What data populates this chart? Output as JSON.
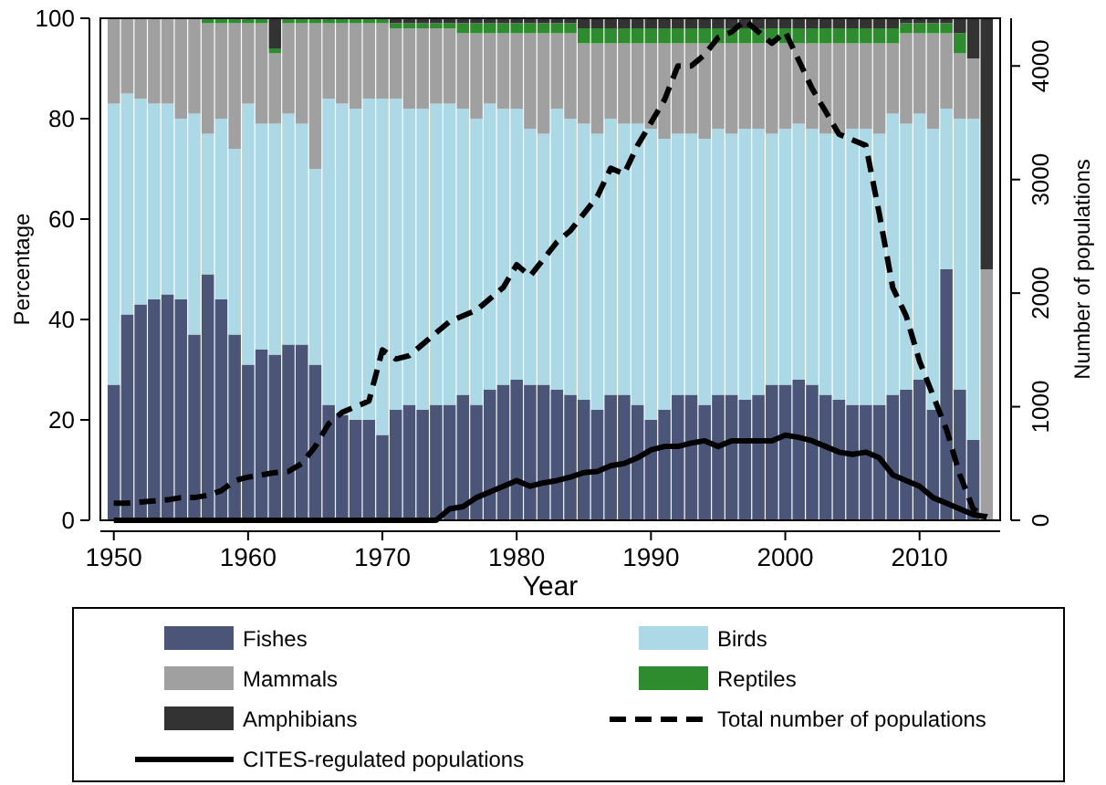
{
  "chart_data": {
    "type": "bar",
    "stacked": true,
    "xlabel": "Year",
    "ylabel": "Percentage",
    "y2label": "Number of populations",
    "x": [
      1950,
      1951,
      1952,
      1953,
      1954,
      1955,
      1956,
      1957,
      1958,
      1959,
      1960,
      1961,
      1962,
      1963,
      1964,
      1965,
      1966,
      1967,
      1968,
      1969,
      1970,
      1971,
      1972,
      1973,
      1974,
      1975,
      1976,
      1977,
      1978,
      1979,
      1980,
      1981,
      1982,
      1983,
      1984,
      1985,
      1986,
      1987,
      1988,
      1989,
      1990,
      1991,
      1992,
      1993,
      1994,
      1995,
      1996,
      1997,
      1998,
      1999,
      2000,
      2001,
      2002,
      2003,
      2004,
      2005,
      2006,
      2007,
      2008,
      2009,
      2010,
      2011,
      2012,
      2013,
      2014,
      2015
    ],
    "xlim": [
      1949,
      2016
    ],
    "xticks": [
      1950,
      1960,
      1970,
      1980,
      1990,
      2000,
      2010
    ],
    "ylim": [
      0,
      100
    ],
    "yticks": [
      0,
      20,
      40,
      60,
      80,
      100
    ],
    "y2lim": [
      0,
      4420
    ],
    "y2ticks": [
      0,
      1000,
      2000,
      3000,
      4000
    ],
    "legend": "bottom",
    "marker": "none",
    "series": [
      {
        "name": "Fishes",
        "color": "#4a5578",
        "values": [
          27,
          41,
          43,
          44,
          45,
          44,
          37,
          49,
          44,
          37,
          31,
          34,
          33,
          35,
          35,
          31,
          23,
          21,
          20,
          20,
          17,
          22,
          23,
          22,
          23,
          23,
          25,
          23,
          26,
          27,
          28,
          27,
          27,
          26,
          25,
          24,
          22,
          25,
          25,
          23,
          20,
          22,
          25,
          25,
          23,
          25,
          25,
          24,
          25,
          27,
          27,
          28,
          27,
          25,
          24,
          23,
          23,
          23,
          25,
          26,
          28,
          22,
          50,
          26,
          16,
          0
        ]
      },
      {
        "name": "Birds",
        "color": "#add8e6",
        "values": [
          56,
          44,
          41,
          39,
          38,
          36,
          44,
          28,
          36,
          37,
          52,
          45,
          46,
          46,
          44,
          39,
          61,
          62,
          62,
          64,
          67,
          62,
          59,
          60,
          60,
          60,
          57,
          57,
          57,
          55,
          54,
          51,
          50,
          56,
          55,
          55,
          55,
          55,
          54,
          56,
          58,
          54,
          52,
          52,
          53,
          53,
          52,
          54,
          53,
          50,
          51,
          51,
          51,
          52,
          53,
          55,
          55,
          54,
          56,
          53,
          53,
          56,
          32,
          54,
          64,
          0
        ]
      },
      {
        "name": "Mammals",
        "color": "#a0a0a0",
        "values": [
          17,
          15,
          16,
          17,
          17,
          20,
          19,
          22,
          19,
          25,
          16,
          20,
          14,
          18,
          20,
          29,
          15,
          16,
          17,
          15,
          15,
          14,
          16,
          16,
          15,
          15,
          15,
          17,
          14,
          15,
          15,
          19,
          20,
          15,
          17,
          16,
          18,
          15,
          16,
          16,
          17,
          19,
          18,
          18,
          19,
          17,
          18,
          17,
          17,
          18,
          17,
          16,
          17,
          18,
          18,
          17,
          17,
          18,
          14,
          18,
          16,
          19,
          15,
          13,
          12,
          50
        ]
      },
      {
        "name": "Reptiles",
        "color": "#2e8b2e",
        "values": [
          0,
          0,
          0,
          0,
          0,
          0,
          0,
          1,
          1,
          1,
          1,
          1,
          1,
          1,
          1,
          1,
          1,
          1,
          1,
          1,
          1,
          1,
          1,
          1,
          1,
          1,
          2,
          2,
          2,
          2,
          2,
          2,
          2,
          2,
          2,
          3,
          3,
          3,
          3,
          3,
          3,
          3,
          3,
          3,
          3,
          3,
          3,
          3,
          3,
          3,
          3,
          3,
          3,
          3,
          3,
          3,
          3,
          3,
          3,
          2,
          2,
          2,
          2,
          4,
          0,
          0
        ]
      },
      {
        "name": "Amphibians",
        "color": "#333333",
        "values": [
          0,
          0,
          0,
          0,
          0,
          0,
          0,
          0,
          0,
          0,
          0,
          0,
          6,
          0,
          0,
          0,
          0,
          0,
          0,
          0,
          0,
          1,
          1,
          1,
          1,
          1,
          1,
          1,
          1,
          1,
          1,
          1,
          1,
          1,
          1,
          2,
          2,
          2,
          2,
          2,
          2,
          2,
          2,
          2,
          2,
          2,
          2,
          2,
          2,
          2,
          2,
          2,
          2,
          2,
          2,
          2,
          2,
          2,
          2,
          1,
          1,
          1,
          1,
          3,
          8,
          50
        ]
      },
      {
        "name": "Total number of populations",
        "type": "line",
        "axis": "y2",
        "color": "#000000",
        "line_style": "dashed",
        "values": [
          150,
          150,
          160,
          170,
          180,
          200,
          200,
          220,
          260,
          350,
          380,
          400,
          420,
          430,
          500,
          650,
          850,
          950,
          1000,
          1050,
          1500,
          1420,
          1450,
          1550,
          1650,
          1750,
          1800,
          1850,
          1950,
          2050,
          2250,
          2150,
          2300,
          2450,
          2550,
          2700,
          2850,
          3100,
          3050,
          3300,
          3500,
          3700,
          4000,
          4000,
          4100,
          4250,
          4300,
          4400,
          4300,
          4200,
          4300,
          4050,
          3800,
          3600,
          3400,
          3350,
          3300,
          2700,
          2050,
          1800,
          1400,
          1100,
          800,
          400,
          100,
          30
        ]
      },
      {
        "name": "CITES-regulated populations",
        "type": "line",
        "axis": "y2",
        "color": "#000000",
        "line_style": "solid",
        "values": [
          0,
          0,
          0,
          0,
          0,
          0,
          0,
          0,
          0,
          0,
          0,
          0,
          0,
          0,
          0,
          0,
          0,
          0,
          0,
          0,
          0,
          0,
          0,
          0,
          0,
          100,
          120,
          200,
          250,
          300,
          350,
          300,
          330,
          350,
          380,
          420,
          430,
          480,
          500,
          550,
          620,
          650,
          650,
          680,
          700,
          650,
          700,
          700,
          700,
          700,
          750,
          730,
          700,
          650,
          600,
          580,
          600,
          550,
          400,
          350,
          300,
          200,
          150,
          100,
          50,
          30
        ]
      }
    ]
  }
}
